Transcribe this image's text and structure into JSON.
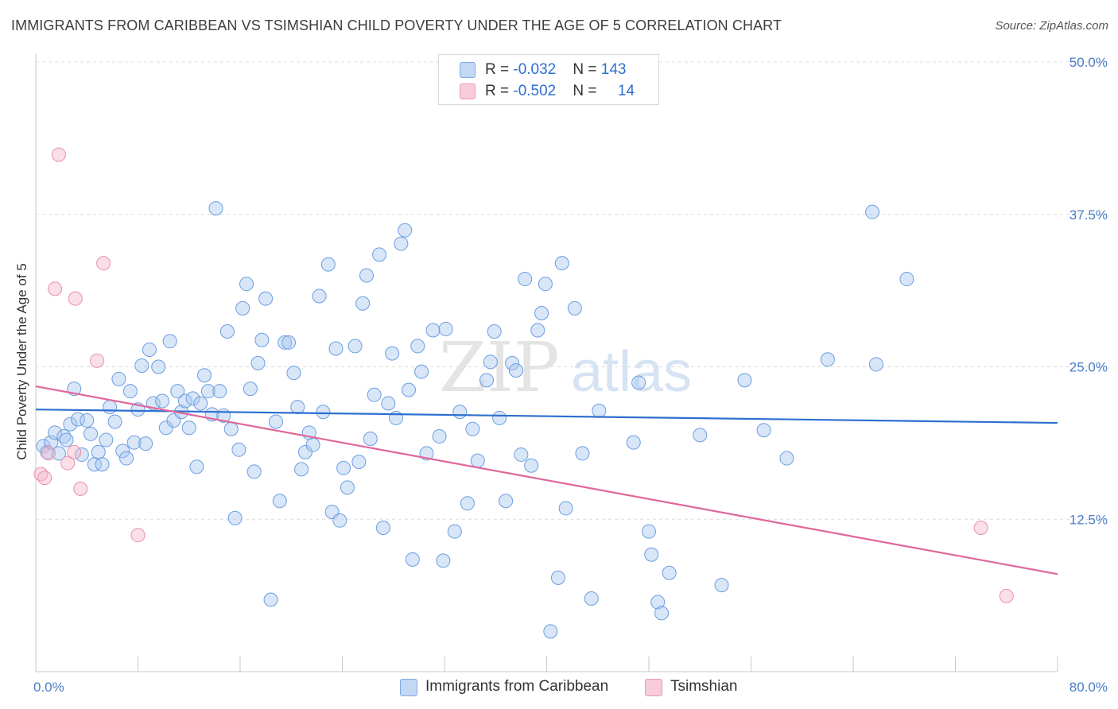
{
  "header": {
    "title": "IMMIGRANTS FROM CARIBBEAN VS TSIMSHIAN CHILD POVERTY UNDER THE AGE OF 5 CORRELATION CHART",
    "source": "Source: ZipAtlas.com"
  },
  "watermark": {
    "zip": "ZIP",
    "atlas": "atlas"
  },
  "legend": {
    "rows": [
      {
        "r_label": "R = ",
        "r_value": "-0.032",
        "n_label": "N = ",
        "n_value": "143",
        "color": "#a9c8f0"
      },
      {
        "r_label": "R = ",
        "r_value": "-0.502",
        "n_label": "N = ",
        "n_value": "14",
        "color": "#f4b7c9"
      }
    ]
  },
  "bottom_legend": {
    "items": [
      {
        "label": "Immigrants from Caribbean",
        "color": "#a9c8f0"
      },
      {
        "label": "Tsimshian",
        "color": "#f4b7c9"
      }
    ]
  },
  "chart_data": {
    "type": "scatter",
    "title": "IMMIGRANTS FROM CARIBBEAN VS TSIMSHIAN CHILD POVERTY UNDER THE AGE OF 5 CORRELATION CHART",
    "xlabel": "",
    "ylabel": "Child Poverty Under the Age of 5",
    "xlim": [
      0,
      80
    ],
    "ylim": [
      0,
      50
    ],
    "x_tick_labels": [
      "0.0%",
      "80.0%"
    ],
    "y_ticks": [
      12.5,
      25.0,
      37.5,
      50.0
    ],
    "y_tick_labels": [
      "12.5%",
      "25.0%",
      "37.5%",
      "50.0%"
    ],
    "grid": "horizontal dashed",
    "legend_position": "top-center",
    "colors": {
      "caribbean": "#a9c8f0",
      "caribbean_edge": "#6c9ee0",
      "caribbean_line": "#2e6fcf",
      "tsimshian": "#f4b7c9",
      "tsimshian_edge": "#e891ad",
      "tsimshian_line": "#e0669a"
    },
    "series": [
      {
        "name": "Immigrants from Caribbean",
        "trend": {
          "x": [
            0,
            80
          ],
          "y": [
            21.5,
            20.4
          ]
        },
        "points": [
          [
            0.6,
            18.5
          ],
          [
            0.9,
            18.0
          ],
          [
            1.2,
            18.8
          ],
          [
            1.5,
            19.6
          ],
          [
            1.8,
            17.9
          ],
          [
            2.2,
            19.3
          ],
          [
            2.4,
            19.0
          ],
          [
            2.7,
            20.3
          ],
          [
            3.0,
            23.2
          ],
          [
            3.3,
            20.7
          ],
          [
            3.6,
            17.8
          ],
          [
            4.0,
            20.6
          ],
          [
            4.3,
            19.5
          ],
          [
            4.6,
            17.0
          ],
          [
            4.9,
            18.0
          ],
          [
            5.2,
            17.0
          ],
          [
            5.5,
            19.0
          ],
          [
            5.8,
            21.7
          ],
          [
            6.2,
            20.5
          ],
          [
            6.5,
            24.0
          ],
          [
            6.8,
            18.1
          ],
          [
            7.1,
            17.5
          ],
          [
            7.4,
            23.0
          ],
          [
            7.7,
            18.8
          ],
          [
            8.0,
            21.5
          ],
          [
            8.3,
            25.1
          ],
          [
            8.6,
            18.7
          ],
          [
            8.9,
            26.4
          ],
          [
            9.2,
            22.0
          ],
          [
            9.6,
            25.0
          ],
          [
            9.9,
            22.2
          ],
          [
            10.2,
            20.0
          ],
          [
            10.5,
            27.1
          ],
          [
            10.8,
            20.6
          ],
          [
            11.1,
            23.0
          ],
          [
            11.4,
            21.3
          ],
          [
            11.7,
            22.2
          ],
          [
            12.0,
            20.0
          ],
          [
            12.3,
            22.4
          ],
          [
            12.6,
            16.8
          ],
          [
            12.9,
            22.0
          ],
          [
            13.2,
            24.3
          ],
          [
            13.5,
            23.0
          ],
          [
            13.8,
            21.1
          ],
          [
            14.1,
            38.0
          ],
          [
            14.4,
            23.0
          ],
          [
            14.7,
            21.0
          ],
          [
            15.0,
            27.9
          ],
          [
            15.3,
            19.9
          ],
          [
            15.6,
            12.6
          ],
          [
            15.9,
            18.2
          ],
          [
            16.2,
            29.8
          ],
          [
            16.5,
            31.8
          ],
          [
            16.8,
            23.2
          ],
          [
            17.1,
            16.4
          ],
          [
            17.4,
            25.3
          ],
          [
            17.7,
            27.2
          ],
          [
            18.0,
            30.6
          ],
          [
            18.4,
            5.9
          ],
          [
            18.8,
            20.5
          ],
          [
            19.1,
            14.0
          ],
          [
            19.5,
            27.0
          ],
          [
            19.8,
            27.0
          ],
          [
            20.2,
            24.5
          ],
          [
            20.5,
            21.7
          ],
          [
            20.8,
            16.6
          ],
          [
            21.1,
            18.0
          ],
          [
            21.4,
            19.6
          ],
          [
            21.7,
            18.6
          ],
          [
            22.2,
            30.8
          ],
          [
            22.5,
            21.3
          ],
          [
            22.9,
            33.4
          ],
          [
            23.2,
            13.1
          ],
          [
            23.5,
            26.5
          ],
          [
            23.8,
            12.4
          ],
          [
            24.1,
            16.7
          ],
          [
            24.4,
            15.1
          ],
          [
            25.0,
            26.7
          ],
          [
            25.3,
            17.2
          ],
          [
            25.6,
            30.2
          ],
          [
            25.9,
            32.5
          ],
          [
            26.2,
            19.1
          ],
          [
            26.5,
            22.7
          ],
          [
            26.9,
            34.2
          ],
          [
            27.2,
            11.8
          ],
          [
            27.6,
            22.0
          ],
          [
            27.9,
            26.1
          ],
          [
            28.2,
            20.8
          ],
          [
            28.6,
            35.1
          ],
          [
            28.9,
            36.2
          ],
          [
            29.2,
            23.1
          ],
          [
            29.5,
            9.2
          ],
          [
            29.9,
            26.7
          ],
          [
            30.2,
            24.6
          ],
          [
            30.6,
            17.9
          ],
          [
            31.1,
            28.0
          ],
          [
            31.6,
            19.3
          ],
          [
            31.9,
            9.1
          ],
          [
            32.1,
            28.1
          ],
          [
            32.8,
            11.5
          ],
          [
            33.2,
            21.3
          ],
          [
            33.8,
            13.8
          ],
          [
            34.2,
            19.9
          ],
          [
            34.6,
            17.3
          ],
          [
            35.3,
            23.9
          ],
          [
            35.6,
            25.4
          ],
          [
            35.9,
            27.9
          ],
          [
            36.3,
            20.8
          ],
          [
            36.8,
            14.0
          ],
          [
            37.3,
            25.3
          ],
          [
            37.6,
            24.7
          ],
          [
            38.0,
            17.8
          ],
          [
            38.3,
            32.2
          ],
          [
            38.8,
            16.9
          ],
          [
            39.3,
            28.0
          ],
          [
            39.6,
            29.4
          ],
          [
            39.9,
            31.8
          ],
          [
            40.3,
            3.3
          ],
          [
            40.9,
            7.7
          ],
          [
            41.2,
            33.5
          ],
          [
            41.5,
            13.4
          ],
          [
            42.2,
            29.8
          ],
          [
            42.8,
            17.9
          ],
          [
            43.5,
            6.0
          ],
          [
            44.1,
            21.4
          ],
          [
            46.8,
            18.8
          ],
          [
            47.2,
            23.7
          ],
          [
            48.0,
            11.5
          ],
          [
            48.2,
            9.6
          ],
          [
            48.7,
            5.7
          ],
          [
            49.0,
            4.8
          ],
          [
            49.6,
            8.1
          ],
          [
            52.0,
            19.4
          ],
          [
            53.7,
            7.1
          ],
          [
            55.5,
            23.9
          ],
          [
            57.0,
            19.8
          ],
          [
            58.8,
            17.5
          ],
          [
            62.0,
            25.6
          ],
          [
            65.5,
            37.7
          ],
          [
            65.8,
            25.2
          ],
          [
            68.2,
            32.2
          ]
        ]
      },
      {
        "name": "Tsimshian",
        "trend": {
          "x": [
            0,
            80
          ],
          "y": [
            23.4,
            8.0
          ]
        },
        "points": [
          [
            0.4,
            16.2
          ],
          [
            0.7,
            15.9
          ],
          [
            1.0,
            17.9
          ],
          [
            1.5,
            31.4
          ],
          [
            1.8,
            42.4
          ],
          [
            2.5,
            17.1
          ],
          [
            3.0,
            18.0
          ],
          [
            3.1,
            30.6
          ],
          [
            3.5,
            15.0
          ],
          [
            4.8,
            25.5
          ],
          [
            5.3,
            33.5
          ],
          [
            8.0,
            11.2
          ],
          [
            74.0,
            11.8
          ],
          [
            76.0,
            6.2
          ]
        ]
      }
    ]
  }
}
